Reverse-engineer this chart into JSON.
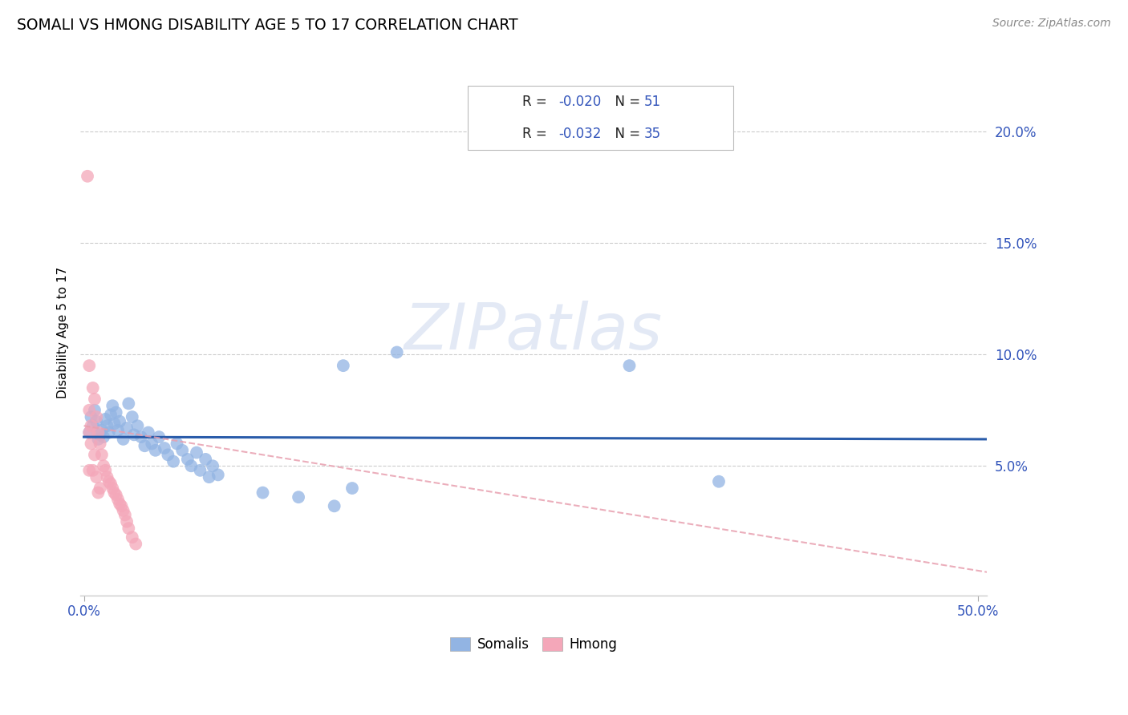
{
  "title": "SOMALI VS HMONG DISABILITY AGE 5 TO 17 CORRELATION CHART",
  "source": "Source: ZipAtlas.com",
  "ylabel": "Disability Age 5 to 17",
  "ytick_labels": [
    "5.0%",
    "10.0%",
    "15.0%",
    "20.0%"
  ],
  "ytick_values": [
    0.05,
    0.1,
    0.15,
    0.2
  ],
  "xlim": [
    -0.002,
    0.505
  ],
  "ylim": [
    -0.008,
    0.228
  ],
  "somali_R": -0.02,
  "somali_N": 51,
  "hmong_R": -0.032,
  "hmong_N": 35,
  "somali_color": "#92b4e3",
  "hmong_color": "#f4a7b9",
  "somali_line_color": "#2a5caa",
  "hmong_line_color": "#e8a0b0",
  "somali_line_slope": -0.002,
  "somali_line_intercept": 0.063,
  "hmong_line_slope": -0.13,
  "hmong_line_intercept": 0.068,
  "watermark_text": "ZIPatlas",
  "somali_x": [
    0.003,
    0.004,
    0.005,
    0.006,
    0.007,
    0.008,
    0.009,
    0.01,
    0.011,
    0.012,
    0.013,
    0.014,
    0.015,
    0.016,
    0.017,
    0.018,
    0.019,
    0.02,
    0.022,
    0.024,
    0.025,
    0.027,
    0.028,
    0.03,
    0.032,
    0.034,
    0.036,
    0.038,
    0.04,
    0.042,
    0.045,
    0.047,
    0.05,
    0.052,
    0.055,
    0.058,
    0.06,
    0.063,
    0.065,
    0.068,
    0.07,
    0.072,
    0.075,
    0.1,
    0.12,
    0.14,
    0.145,
    0.305,
    0.355,
    0.15,
    0.175
  ],
  "somali_y": [
    0.065,
    0.072,
    0.068,
    0.075,
    0.07,
    0.062,
    0.064,
    0.066,
    0.063,
    0.071,
    0.068,
    0.065,
    0.073,
    0.077,
    0.069,
    0.074,
    0.066,
    0.07,
    0.062,
    0.067,
    0.078,
    0.072,
    0.064,
    0.068,
    0.063,
    0.059,
    0.065,
    0.06,
    0.057,
    0.063,
    0.058,
    0.055,
    0.052,
    0.06,
    0.057,
    0.053,
    0.05,
    0.056,
    0.048,
    0.053,
    0.045,
    0.05,
    0.046,
    0.038,
    0.036,
    0.032,
    0.095,
    0.095,
    0.043,
    0.04,
    0.101
  ],
  "hmong_x": [
    0.002,
    0.003,
    0.003,
    0.003,
    0.003,
    0.004,
    0.004,
    0.005,
    0.005,
    0.006,
    0.006,
    0.007,
    0.007,
    0.008,
    0.008,
    0.009,
    0.009,
    0.01,
    0.011,
    0.012,
    0.013,
    0.014,
    0.015,
    0.016,
    0.017,
    0.018,
    0.019,
    0.02,
    0.021,
    0.022,
    0.023,
    0.024,
    0.025,
    0.027,
    0.029
  ],
  "hmong_y": [
    0.18,
    0.095,
    0.075,
    0.065,
    0.048,
    0.068,
    0.06,
    0.085,
    0.048,
    0.08,
    0.055,
    0.072,
    0.045,
    0.065,
    0.038,
    0.06,
    0.04,
    0.055,
    0.05,
    0.048,
    0.045,
    0.043,
    0.042,
    0.04,
    0.038,
    0.037,
    0.035,
    0.033,
    0.032,
    0.03,
    0.028,
    0.025,
    0.022,
    0.018,
    0.015
  ]
}
